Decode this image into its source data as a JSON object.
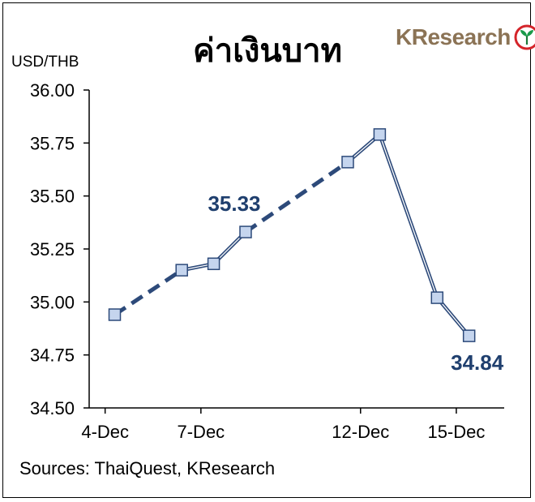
{
  "chart_data": {
    "type": "line",
    "title": "ค่าเงินบาท",
    "ylabel": "USD/THB",
    "source": "Sources: ThaiQuest, KResearch",
    "brand": "KResearch",
    "ylim": [
      34.5,
      36.0
    ],
    "yticks": [
      "36.00",
      "35.75",
      "35.50",
      "35.25",
      "35.00",
      "34.75",
      "34.50"
    ],
    "ytick_values": [
      36.0,
      35.75,
      35.5,
      35.25,
      35.0,
      34.75,
      34.5
    ],
    "xlim": [
      3.5,
      16.5
    ],
    "xticks": [
      {
        "label": "4-Dec",
        "day": 4
      },
      {
        "label": "7-Dec",
        "day": 7
      },
      {
        "label": "12-Dec",
        "day": 12
      },
      {
        "label": "15-Dec",
        "day": 15
      }
    ],
    "series": [
      {
        "points": [
          {
            "day": 4.3,
            "value": 34.94
          },
          {
            "day": 6.4,
            "value": 35.15
          },
          {
            "day": 7.4,
            "value": 35.18
          },
          {
            "day": 8.4,
            "value": 35.33
          },
          {
            "day": 11.6,
            "value": 35.66
          },
          {
            "day": 12.6,
            "value": 35.79
          },
          {
            "day": 14.4,
            "value": 35.02
          },
          {
            "day": 15.4,
            "value": 34.84
          }
        ]
      }
    ],
    "dashed_segments": [
      [
        0,
        1
      ],
      [
        3,
        4
      ]
    ],
    "data_labels": [
      {
        "point_index": 3,
        "text": "35.33"
      },
      {
        "point_index": 7,
        "text": "34.84"
      }
    ],
    "colors": {
      "line": "#2d4a7a",
      "marker_fill": "#c5d5ee",
      "marker_stroke": "#2d4a7a",
      "label": "#1f3f6e"
    }
  }
}
